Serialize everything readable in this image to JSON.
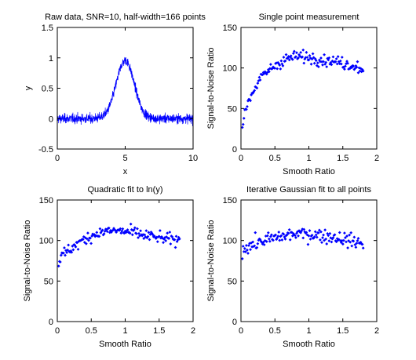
{
  "chart_data": [
    {
      "type": "line",
      "title": "Raw data, SNR=10, half-width=166 points",
      "xlabel": "x",
      "ylabel": "y",
      "xlim": [
        0,
        10
      ],
      "ylim": [
        -0.5,
        1.5
      ],
      "xticks": [
        0,
        5,
        10
      ],
      "yticks": [
        -0.5,
        0,
        0.5,
        1,
        1.5
      ],
      "xtick_labels": [
        "0",
        "5",
        "10"
      ],
      "ytick_labels": [
        "-0.5",
        "0",
        "0.5",
        "1",
        "1.5"
      ],
      "grid": false,
      "color": "#0000ff",
      "series": [
        {
          "x": [
            0,
            0.5,
            1,
            1.5,
            2,
            2.5,
            3,
            3.25,
            3.5,
            3.75,
            4,
            4.25,
            4.5,
            4.75,
            5,
            5.25,
            5.5,
            5.75,
            6,
            6.25,
            6.5,
            6.75,
            7,
            7.5,
            8,
            8.5,
            9,
            9.5,
            10
          ],
          "values": [
            0,
            0,
            0,
            0,
            0,
            0,
            0.01,
            0.03,
            0.07,
            0.15,
            0.3,
            0.5,
            0.72,
            0.9,
            0.97,
            0.9,
            0.72,
            0.5,
            0.3,
            0.15,
            0.07,
            0.03,
            0.01,
            0,
            0,
            0,
            0,
            0,
            0
          ],
          "noise_amplitude": 0.1,
          "n_points": 1000
        }
      ]
    },
    {
      "type": "scatter",
      "title": "Single point measurement",
      "xlabel": "Smooth Ratio",
      "ylabel": "Signal-to-Noise Ratio",
      "xlim": [
        0,
        2
      ],
      "ylim": [
        0,
        150
      ],
      "xticks": [
        0,
        0.5,
        1,
        1.5,
        2
      ],
      "yticks": [
        0,
        50,
        100,
        150
      ],
      "xtick_labels": [
        "0",
        "0.5",
        "1",
        "1.5",
        "2"
      ],
      "ytick_labels": [
        "0",
        "50",
        "100",
        "150"
      ],
      "grid": false,
      "color": "#0000ff",
      "series": [
        {
          "x": [
            0,
            0.1,
            0.2,
            0.3,
            0.4,
            0.5,
            0.6,
            0.7,
            0.8,
            0.9,
            1.0,
            1.1,
            1.2,
            1.3,
            1.4,
            1.5,
            1.6,
            1.7,
            1.8
          ],
          "values": [
            22,
            58,
            75,
            88,
            96,
            103,
            108,
            112,
            114,
            114,
            113,
            112,
            110,
            109,
            108,
            106,
            104,
            102,
            98
          ],
          "spread": 5,
          "n_points": 150
        }
      ]
    },
    {
      "type": "scatter",
      "title": "Quadratic fit to ln(y)",
      "xlabel": "Smooth Ratio",
      "ylabel": "Signal-to-Noise Ratio",
      "xlim": [
        0,
        2
      ],
      "ylim": [
        0,
        150
      ],
      "xticks": [
        0,
        0.5,
        1,
        1.5,
        2
      ],
      "yticks": [
        0,
        50,
        100,
        150
      ],
      "xtick_labels": [
        "0",
        "0.5",
        "1",
        "1.5",
        "2"
      ],
      "ytick_labels": [
        "0",
        "50",
        "100",
        "150"
      ],
      "grid": false,
      "color": "#0000ff",
      "series": [
        {
          "x": [
            0,
            0.1,
            0.2,
            0.3,
            0.4,
            0.5,
            0.6,
            0.7,
            0.8,
            0.9,
            1.0,
            1.1,
            1.2,
            1.3,
            1.4,
            1.5,
            1.6,
            1.7,
            1.8
          ],
          "values": [
            72,
            84,
            90,
            96,
            101,
            106,
            109,
            111,
            112,
            112,
            111,
            110,
            108,
            106,
            105,
            103,
            102,
            101,
            100
          ],
          "spread": 5,
          "n_points": 150
        }
      ]
    },
    {
      "type": "scatter",
      "title": "Iterative Gaussian fit to all points",
      "xlabel": "Smooth Ratio",
      "ylabel": "Signal-to-Noise Ratio",
      "xlim": [
        0,
        2
      ],
      "ylim": [
        0,
        150
      ],
      "xticks": [
        0,
        0.5,
        1,
        1.5,
        2
      ],
      "yticks": [
        0,
        50,
        100,
        150
      ],
      "xtick_labels": [
        "0",
        "0.5",
        "1",
        "1.5",
        "2"
      ],
      "ytick_labels": [
        "0",
        "50",
        "100",
        "150"
      ],
      "grid": false,
      "color": "#0000ff",
      "series": [
        {
          "x": [
            0,
            0.1,
            0.2,
            0.3,
            0.4,
            0.5,
            0.6,
            0.7,
            0.8,
            0.9,
            1.0,
            1.1,
            1.2,
            1.3,
            1.4,
            1.5,
            1.6,
            1.7,
            1.8
          ],
          "values": [
            88,
            93,
            96,
            99,
            101,
            103,
            105,
            107,
            108,
            108,
            108,
            107,
            106,
            105,
            104,
            102,
            100,
            98,
            96
          ],
          "spread": 6,
          "n_points": 150
        }
      ]
    }
  ]
}
